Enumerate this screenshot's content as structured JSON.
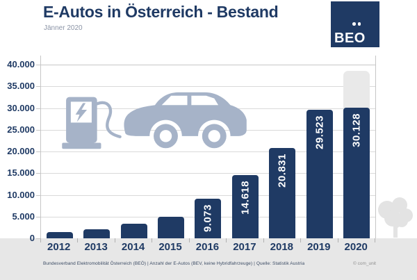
{
  "header": {
    "title": "E-Autos in Österreich - Bestand",
    "subtitle": "Jänner 2020",
    "logo_text": "BEO"
  },
  "chart_data": {
    "type": "bar",
    "title": "E-Autos in Österreich - Bestand",
    "subtitle": "Jänner 2020",
    "categories": [
      "2012",
      "2013",
      "2014",
      "2015",
      "2016",
      "2017",
      "2018",
      "2019",
      "2020"
    ],
    "values": [
      1400,
      2100,
      3400,
      5000,
      9073,
      14618,
      20831,
      29523,
      30128
    ],
    "bar_labels": [
      "",
      "",
      "",
      "",
      "9.073",
      "14.618",
      "20.831",
      "29.523",
      "30.128"
    ],
    "ylim": [
      0,
      40000
    ],
    "y_tick_step": 5000,
    "y_tick_labels": [
      "0",
      "5.000",
      "10.000",
      "15.000",
      "20.000",
      "25.000",
      "30.000",
      "35.000",
      "40.000"
    ],
    "grid": "horizontal",
    "legend": "none",
    "ghost_bar": {
      "category": "2020",
      "estimated_top_value": 38500
    }
  },
  "footer": {
    "left": "Bundesverband Elektromobilität Österreich (BEÖ) | Anzahl der E-Autos (BEV, keine Hybridfahrzeuge) | Quelle: Statistik Austria",
    "right": "© com_unit"
  },
  "colors": {
    "navy": "#1f3a64",
    "steel_blue": "#a6b3c8",
    "band_gray": "#e7e7e7",
    "ghost_gray": "#e9e9e9",
    "grid_gray": "#d9d9d9",
    "border_gray": "#c6c6c6",
    "subtitle_gray": "#8a93a5"
  }
}
